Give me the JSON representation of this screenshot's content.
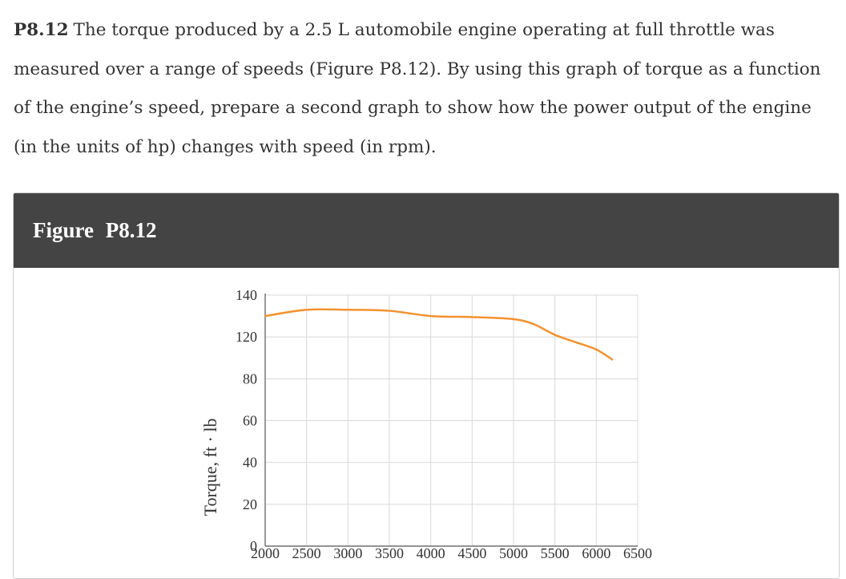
{
  "problem": {
    "number": "P8.12",
    "text": "The torque produced by a 2.5 L automobile engine operating at full throttle was measured over a range of speeds (Figure P8.12). By using this graph of torque as a function of the engine’s speed, prepare a second graph to show how the power output of the engine (in the units of hp) changes with speed (in rpm)."
  },
  "figure": {
    "title": "Figure  P8.12"
  },
  "colors": {
    "header_bg": "#444444",
    "curve": "#F5922F",
    "grid": "#d9d9d9",
    "text": "#333333"
  },
  "chart_data": {
    "type": "line",
    "title": "",
    "xlabel": "",
    "ylabel": "Torque, ft · lb",
    "x_ticks": [
      2000,
      2500,
      3000,
      3500,
      4000,
      4500,
      5000,
      5500,
      6000,
      6500
    ],
    "y_ticks": [
      0,
      20,
      40,
      60,
      80,
      120,
      140
    ],
    "x_range": [
      2000,
      6500
    ],
    "grid": true,
    "series": [
      {
        "x": [
          2000,
          2500,
          3000,
          3500,
          4000,
          4500,
          5000,
          5250,
          5500,
          5750,
          6000,
          6200
        ],
        "y": [
          130,
          133,
          133,
          132.5,
          130,
          129.5,
          128.5,
          126,
          121,
          115,
          108,
          98
        ]
      }
    ]
  }
}
